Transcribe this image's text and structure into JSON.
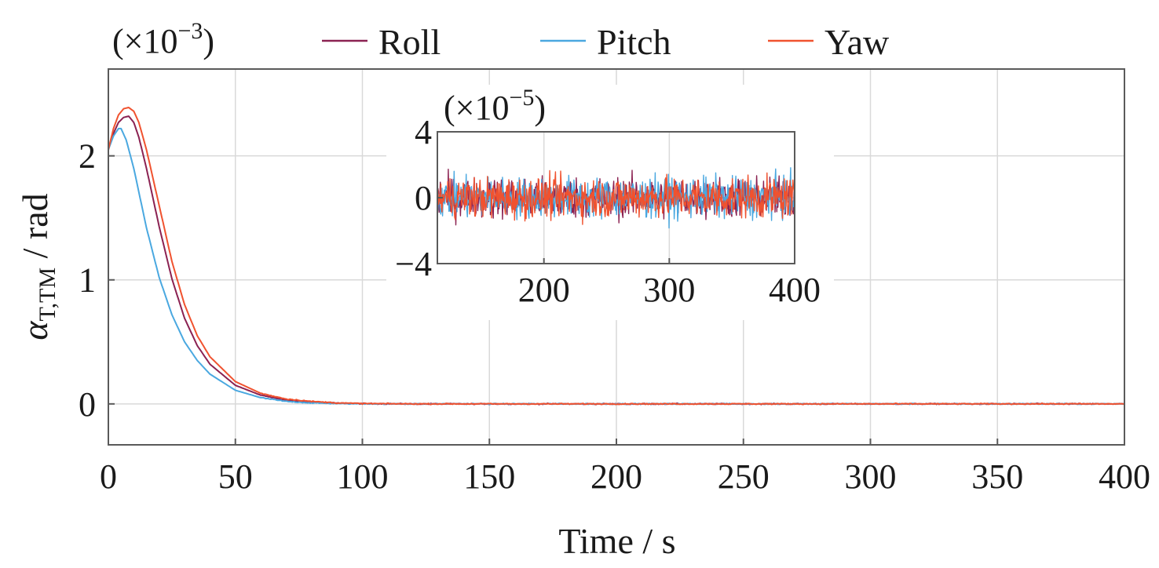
{
  "chart_data": {
    "type": "line",
    "xlabel": "Time / s",
    "ylabel": {
      "main": "α",
      "subscript": "T,TM",
      "unit": " / rad"
    },
    "y_multiplier_label": "(×10",
    "y_multiplier_exp": "−3",
    "y_multiplier_close": ")",
    "xlim": [
      0,
      400
    ],
    "ylim": [
      -0.33,
      2.7
    ],
    "x_ticks": [
      0,
      50,
      100,
      150,
      200,
      250,
      300,
      350,
      400
    ],
    "y_ticks": [
      0,
      1,
      2
    ],
    "grid": true,
    "legend_position": "top",
    "series": [
      {
        "name": "Roll",
        "color": "#8b2252",
        "points": [
          [
            0,
            2.05
          ],
          [
            2,
            2.18
          ],
          [
            4,
            2.27
          ],
          [
            6,
            2.31
          ],
          [
            8,
            2.32
          ],
          [
            10,
            2.27
          ],
          [
            12,
            2.15
          ],
          [
            15,
            1.9
          ],
          [
            20,
            1.43
          ],
          [
            25,
            1.01
          ],
          [
            30,
            0.69
          ],
          [
            35,
            0.47
          ],
          [
            40,
            0.32
          ],
          [
            50,
            0.15
          ],
          [
            60,
            0.07
          ],
          [
            70,
            0.03
          ],
          [
            80,
            0.015
          ],
          [
            90,
            0.006
          ],
          [
            100,
            0.002
          ],
          [
            120,
            0.0
          ],
          [
            400,
            0.0
          ]
        ]
      },
      {
        "name": "Pitch",
        "color": "#4aa8e0",
        "points": [
          [
            0,
            2.05
          ],
          [
            2,
            2.16
          ],
          [
            4,
            2.22
          ],
          [
            5,
            2.22
          ],
          [
            7,
            2.13
          ],
          [
            10,
            1.9
          ],
          [
            15,
            1.42
          ],
          [
            20,
            1.02
          ],
          [
            25,
            0.72
          ],
          [
            30,
            0.5
          ],
          [
            35,
            0.35
          ],
          [
            40,
            0.24
          ],
          [
            50,
            0.11
          ],
          [
            60,
            0.05
          ],
          [
            70,
            0.02
          ],
          [
            80,
            0.008
          ],
          [
            90,
            0.003
          ],
          [
            100,
            0.001
          ],
          [
            120,
            0.0
          ],
          [
            400,
            0.0
          ]
        ]
      },
      {
        "name": "Yaw",
        "color": "#f0522f",
        "points": [
          [
            0,
            2.05
          ],
          [
            2,
            2.22
          ],
          [
            4,
            2.33
          ],
          [
            6,
            2.38
          ],
          [
            8,
            2.39
          ],
          [
            10,
            2.36
          ],
          [
            12,
            2.27
          ],
          [
            15,
            2.05
          ],
          [
            20,
            1.6
          ],
          [
            25,
            1.15
          ],
          [
            30,
            0.8
          ],
          [
            35,
            0.55
          ],
          [
            40,
            0.38
          ],
          [
            50,
            0.18
          ],
          [
            60,
            0.085
          ],
          [
            70,
            0.04
          ],
          [
            80,
            0.02
          ],
          [
            90,
            0.008
          ],
          [
            100,
            0.003
          ],
          [
            120,
            0.0
          ],
          [
            400,
            0.0
          ]
        ]
      }
    ],
    "inset": {
      "type": "line",
      "y_multiplier_label": "(×10",
      "y_multiplier_exp": "−5",
      "y_multiplier_close": ")",
      "xlim": [
        115,
        400
      ],
      "ylim": [
        -4,
        4
      ],
      "x_ticks": [
        200,
        300,
        400
      ],
      "y_ticks": [
        -4,
        0,
        4
      ],
      "y_tick_labels": [
        "−4",
        "0",
        "4"
      ],
      "grid": true,
      "noise_amplitude": 2.2
    }
  }
}
